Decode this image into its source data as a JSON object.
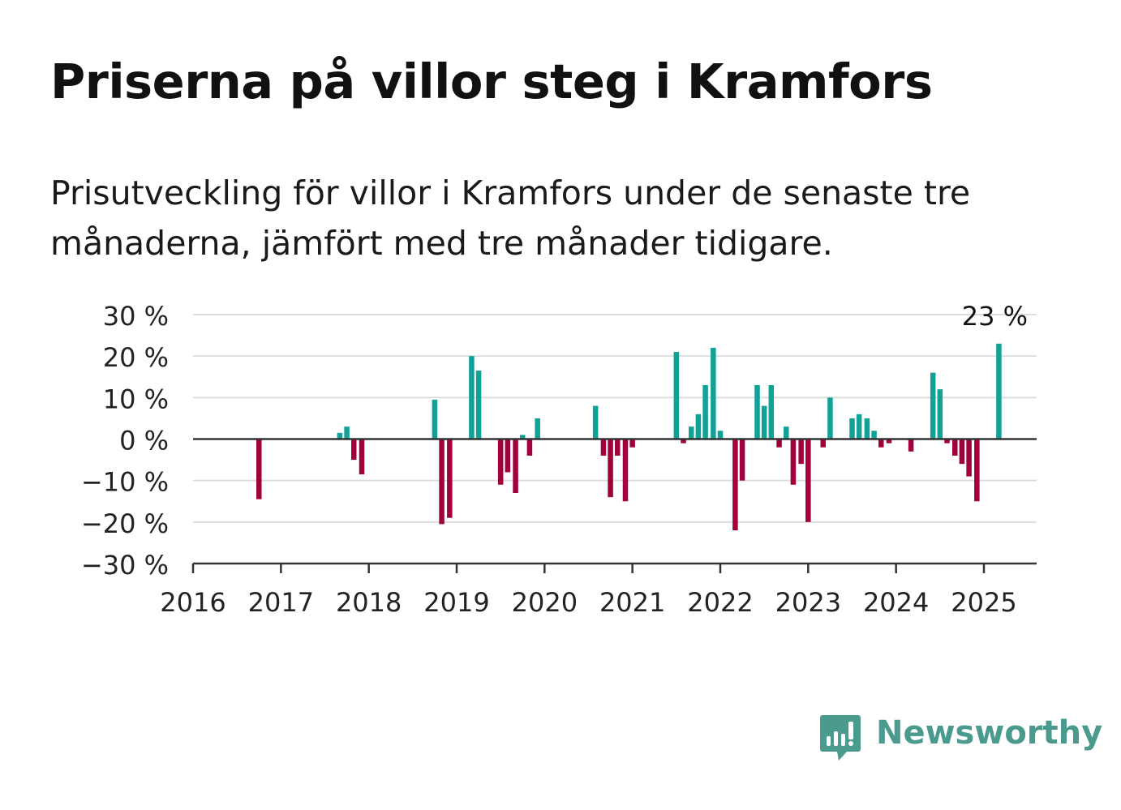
{
  "title": "Priserna på villor steg i Kramfors",
  "subtitle": "Prisutveckling för villor i Kramfors under de senaste tre månaderna, jämfört med tre månader tidigare.",
  "brand": {
    "name": "Newsworthy",
    "icon": "newsworthy-logo-icon"
  },
  "colors": {
    "positive": "#12a196",
    "negative": "#a0003c",
    "grid": "#dddddd",
    "axis": "#333333"
  },
  "chart_data": {
    "type": "bar",
    "ylim": [
      -30,
      30
    ],
    "y_ticks": [
      -30,
      -20,
      -10,
      0,
      10,
      20,
      30
    ],
    "y_tick_labels": [
      "−30 %",
      "−20 %",
      "−10 %",
      "0 %",
      "10 %",
      "20 %",
      "30 %"
    ],
    "x_range": [
      2016,
      2025.6
    ],
    "x_ticks": [
      2016,
      2017,
      2018,
      2019,
      2020,
      2021,
      2022,
      2023,
      2024,
      2025
    ],
    "x_tick_labels": [
      "2016",
      "2017",
      "2018",
      "2019",
      "2020",
      "2021",
      "2022",
      "2023",
      "2024",
      "2025"
    ],
    "grid": true,
    "annotation": {
      "x": 2025.17,
      "value": 23,
      "text": "23 %"
    },
    "bars": [
      {
        "x": 2016.75,
        "value": -14.5
      },
      {
        "x": 2017.67,
        "value": 1.5
      },
      {
        "x": 2017.75,
        "value": 3
      },
      {
        "x": 2017.83,
        "value": -5
      },
      {
        "x": 2017.92,
        "value": -8.5
      },
      {
        "x": 2018.75,
        "value": 9.5
      },
      {
        "x": 2018.83,
        "value": -20.5
      },
      {
        "x": 2018.92,
        "value": -19
      },
      {
        "x": 2019.17,
        "value": 20
      },
      {
        "x": 2019.25,
        "value": 16.5
      },
      {
        "x": 2019.5,
        "value": -11
      },
      {
        "x": 2019.58,
        "value": -8
      },
      {
        "x": 2019.67,
        "value": -13
      },
      {
        "x": 2019.75,
        "value": 1
      },
      {
        "x": 2019.83,
        "value": -4
      },
      {
        "x": 2019.92,
        "value": 5
      },
      {
        "x": 2020.58,
        "value": 8
      },
      {
        "x": 2020.67,
        "value": -4
      },
      {
        "x": 2020.75,
        "value": -14
      },
      {
        "x": 2020.83,
        "value": -4
      },
      {
        "x": 2020.92,
        "value": -15
      },
      {
        "x": 2021.0,
        "value": -2
      },
      {
        "x": 2021.5,
        "value": 21
      },
      {
        "x": 2021.58,
        "value": -1
      },
      {
        "x": 2021.67,
        "value": 3
      },
      {
        "x": 2021.75,
        "value": 6
      },
      {
        "x": 2021.83,
        "value": 13
      },
      {
        "x": 2021.92,
        "value": 22
      },
      {
        "x": 2022.0,
        "value": 2
      },
      {
        "x": 2022.17,
        "value": -22
      },
      {
        "x": 2022.25,
        "value": -10
      },
      {
        "x": 2022.42,
        "value": 13
      },
      {
        "x": 2022.5,
        "value": 8
      },
      {
        "x": 2022.58,
        "value": 13
      },
      {
        "x": 2022.67,
        "value": -2
      },
      {
        "x": 2022.75,
        "value": 3
      },
      {
        "x": 2022.83,
        "value": -11
      },
      {
        "x": 2022.92,
        "value": -6
      },
      {
        "x": 2023.0,
        "value": -20
      },
      {
        "x": 2023.17,
        "value": -2
      },
      {
        "x": 2023.25,
        "value": 10
      },
      {
        "x": 2023.5,
        "value": 5
      },
      {
        "x": 2023.58,
        "value": 6
      },
      {
        "x": 2023.67,
        "value": 5
      },
      {
        "x": 2023.75,
        "value": 2
      },
      {
        "x": 2023.83,
        "value": -2
      },
      {
        "x": 2023.92,
        "value": -1
      },
      {
        "x": 2024.17,
        "value": -3
      },
      {
        "x": 2024.42,
        "value": 16
      },
      {
        "x": 2024.5,
        "value": 12
      },
      {
        "x": 2024.58,
        "value": -1
      },
      {
        "x": 2024.67,
        "value": -4
      },
      {
        "x": 2024.75,
        "value": -6
      },
      {
        "x": 2024.83,
        "value": -9
      },
      {
        "x": 2024.92,
        "value": -15
      },
      {
        "x": 2025.17,
        "value": 23
      }
    ]
  }
}
